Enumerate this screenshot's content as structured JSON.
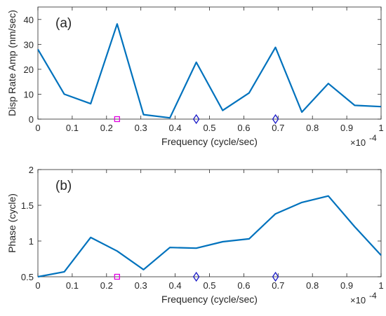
{
  "chart_data": [
    {
      "type": "line",
      "panel_label": "(a)",
      "xlabel": "Frequency (cycle/sec)",
      "ylabel": "Disp Rate Amp (nm/sec)",
      "x_exponent_base": "×10",
      "x_exponent_power": "-4",
      "xlim": [
        0,
        1
      ],
      "ylim": [
        0,
        45
      ],
      "xticks": [
        0,
        0.1,
        0.2,
        0.3,
        0.4,
        0.5,
        0.6,
        0.7,
        0.8,
        0.9,
        1
      ],
      "xtick_labels": [
        "0",
        "0.1",
        "0.2",
        "0.3",
        "0.4",
        "0.5",
        "0.6",
        "0.7",
        "0.8",
        "0.9",
        "1"
      ],
      "yticks": [
        0,
        10,
        20,
        30,
        40
      ],
      "ytick_labels": [
        "0",
        "10",
        "20",
        "30",
        "40"
      ],
      "grid": false,
      "line_color": "#0072BD",
      "series": [
        {
          "x": [
            0,
            0.0769,
            0.1538,
            0.2308,
            0.3077,
            0.3846,
            0.4615,
            0.5385,
            0.6154,
            0.6923,
            0.7692,
            0.8462,
            0.9231,
            1.0
          ],
          "values": [
            28,
            10,
            6.2,
            38.2,
            1.8,
            0.5,
            22.8,
            3.5,
            10.5,
            28.8,
            2.8,
            14.3,
            5.5,
            5
          ]
        }
      ],
      "markers": [
        {
          "shape": "square",
          "x": 0.2308,
          "y": 0,
          "color": "#E000E0"
        },
        {
          "shape": "diamond",
          "x": 0.4615,
          "y": 0,
          "color": "#1A1AC8"
        },
        {
          "shape": "diamond",
          "x": 0.6923,
          "y": 0,
          "color": "#1A1AC8"
        }
      ]
    },
    {
      "type": "line",
      "panel_label": "(b)",
      "xlabel": "Frequency (cycle/sec)",
      "ylabel": "Phase (cycle)",
      "x_exponent_base": "×10",
      "x_exponent_power": "-4",
      "xlim": [
        0,
        1
      ],
      "ylim": [
        0.5,
        2
      ],
      "xticks": [
        0,
        0.1,
        0.2,
        0.3,
        0.4,
        0.5,
        0.6,
        0.7,
        0.8,
        0.9,
        1
      ],
      "xtick_labels": [
        "0",
        "0.1",
        "0.2",
        "0.3",
        "0.4",
        "0.5",
        "0.6",
        "0.7",
        "0.8",
        "0.9",
        "1"
      ],
      "yticks": [
        0.5,
        1,
        1.5,
        2
      ],
      "ytick_labels": [
        "0.5",
        "1",
        "1.5",
        "2"
      ],
      "grid": false,
      "line_color": "#0072BD",
      "series": [
        {
          "x": [
            0,
            0.0769,
            0.1538,
            0.2308,
            0.3077,
            0.3846,
            0.4615,
            0.5385,
            0.6154,
            0.6923,
            0.7692,
            0.8462,
            0.9231,
            1.0
          ],
          "values": [
            0.5,
            0.57,
            1.05,
            0.86,
            0.6,
            0.91,
            0.9,
            0.99,
            1.03,
            1.38,
            1.54,
            1.63,
            1.2,
            0.8
          ]
        }
      ],
      "markers": [
        {
          "shape": "square",
          "x": 0.2308,
          "y": 0.5,
          "color": "#E000E0"
        },
        {
          "shape": "diamond",
          "x": 0.4615,
          "y": 0.5,
          "color": "#1A1AC8"
        },
        {
          "shape": "diamond",
          "x": 0.6923,
          "y": 0.5,
          "color": "#1A1AC8"
        }
      ]
    }
  ]
}
